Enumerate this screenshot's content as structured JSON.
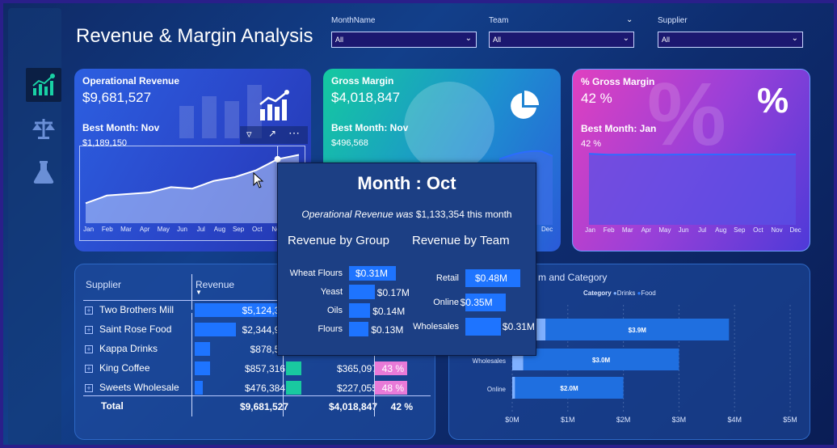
{
  "header": {
    "title": "Revenue & Margin Analysis",
    "slicers": [
      {
        "label": "MonthName",
        "value": "All"
      },
      {
        "label": "Team",
        "value": "All"
      },
      {
        "label": "Supplier",
        "value": "All"
      }
    ]
  },
  "rail": {
    "icons": [
      "chart-growth-icon",
      "scales-icon",
      "flask-icon"
    ]
  },
  "cards": {
    "revenue": {
      "title": "Operational Revenue",
      "value": "$9,681,527",
      "best_label": "Best Month: Nov",
      "best_value": "$1,189,150",
      "icon": "bar-chart-icon"
    },
    "gross_margin": {
      "title": "Gross Margin",
      "value": "$4,018,847",
      "best_label": "Best Month: Nov",
      "best_value": "$496,568",
      "icon": "pie-chart-icon"
    },
    "pct_margin": {
      "title": "% Gross Margin",
      "value": "42 %",
      "best_label": "Best Month: Jan",
      "best_value": "42 %",
      "icon": "percent-icon"
    }
  },
  "months": [
    "Jan",
    "Feb",
    "Mar",
    "Apr",
    "May",
    "Jun",
    "Jul",
    "Aug",
    "Sep",
    "Oct",
    "No"
  ],
  "months_full": [
    "Jan",
    "Feb",
    "Mar",
    "Apr",
    "May",
    "Jun",
    "Jul",
    "Aug",
    "Sep",
    "Oct",
    "Nov",
    "Dec"
  ],
  "gm_axis_tail": [
    "Dec"
  ],
  "chart_data": [
    {
      "type": "area",
      "name": "revenue-sparkline",
      "categories": [
        "Jan",
        "Feb",
        "Mar",
        "Apr",
        "May",
        "Jun",
        "Jul",
        "Aug",
        "Sep",
        "Oct",
        "Nov"
      ],
      "values": [
        560000,
        660000,
        680000,
        700000,
        770000,
        750000,
        850000,
        900000,
        990000,
        1133354,
        1189150
      ]
    },
    {
      "type": "area",
      "name": "pct-margin-sparkline",
      "categories": [
        "Jan",
        "Feb",
        "Mar",
        "Apr",
        "May",
        "Jun",
        "Jul",
        "Aug",
        "Sep",
        "Oct",
        "Nov",
        "Dec"
      ],
      "values": [
        42,
        41.5,
        41.5,
        41.6,
        41.5,
        41.6,
        41.6,
        41.6,
        41.6,
        41.6,
        41.6,
        41.6
      ],
      "xlabel": "",
      "ylabel": ""
    },
    {
      "type": "bar",
      "name": "revenue-by-team-category",
      "title": "m and Category",
      "legend_title": "Category",
      "legend": [
        "Drinks",
        "Food"
      ],
      "categories": [
        "Retail",
        "Wholesales",
        "Online"
      ],
      "series": [
        {
          "name": "Drinks",
          "values": [
            0.6,
            0.2,
            0.05
          ]
        },
        {
          "name": "Food",
          "values": [
            3.9,
            3.0,
            2.0
          ]
        }
      ],
      "data_labels": [
        "$3.9M",
        "$3.0M",
        "$2.0M"
      ],
      "ticks": [
        "$0M",
        "$1M",
        "$2M",
        "$3M",
        "$4M",
        "$5M"
      ],
      "xlim": [
        0,
        5
      ]
    }
  ],
  "table": {
    "headers": [
      "Supplier",
      "Revenue"
    ],
    "rows": [
      {
        "supplier": "Two Brothers Mill",
        "revenue": "$5,124,31",
        "rev_frac": 1.0
      },
      {
        "supplier": "Saint Rose Food",
        "revenue": "$2,344,96",
        "rev_frac": 0.46
      },
      {
        "supplier": "Kappa Drinks",
        "revenue": "$878,54",
        "rev_frac": 0.17
      },
      {
        "supplier": "King Coffee",
        "revenue": "$857,316",
        "rev_frac": 0.17,
        "margin": "$365,097",
        "pct": "43 %",
        "margin_frac": 0.17
      },
      {
        "supplier": "Sweets Wholesale",
        "revenue": "$476,384",
        "rev_frac": 0.09,
        "margin": "$227,055",
        "pct": "48 %",
        "margin_frac": 0.09
      }
    ],
    "total": {
      "label": "Total",
      "revenue": "$9,681,527",
      "margin": "$4,018,847",
      "pct": "42 %"
    }
  },
  "tooltip": {
    "title": "Month : Oct",
    "sub_italic": "Operational Revenue was",
    "sub_rest": " $1,133,354 this month",
    "group_head": "Revenue by Group",
    "team_head": "Revenue by Team",
    "groups": [
      {
        "label": "Wheat Flours",
        "value": "$0.31M",
        "frac": 0.31
      },
      {
        "label": "Yeast",
        "value": "$0.17M",
        "frac": 0.17
      },
      {
        "label": "Oils",
        "value": "$0.14M",
        "frac": 0.14
      },
      {
        "label": "Flours",
        "value": "$0.13M",
        "frac": 0.13
      }
    ],
    "teams": [
      {
        "label": "Retail",
        "value": "$0.48M",
        "frac": 0.48
      },
      {
        "label": "Online",
        "value": "$0.35M",
        "frac": 0.35
      },
      {
        "label": "Wholesales",
        "value": "$0.31M",
        "frac": 0.31
      }
    ]
  },
  "colors": {
    "accent": "#1e74ff",
    "teal": "#19c9a0",
    "pink": "#e87ad8",
    "frame": "#2a1f8a"
  }
}
